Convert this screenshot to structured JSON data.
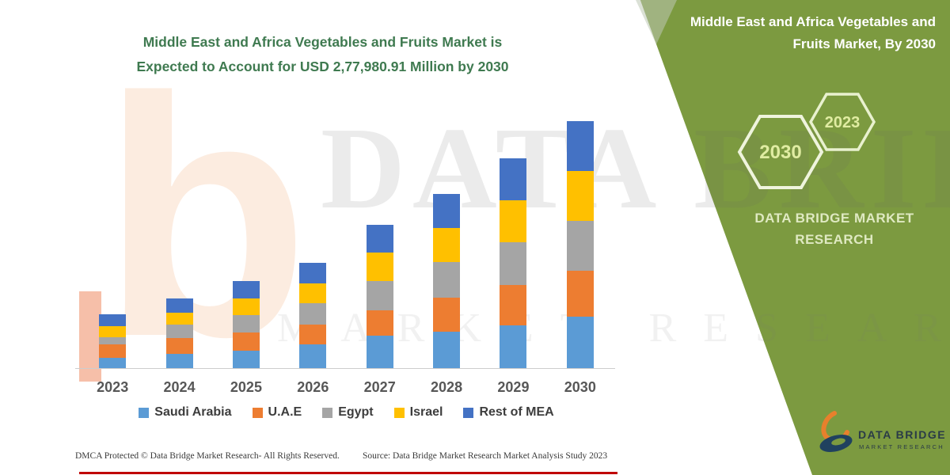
{
  "page_background": "#ffffff",
  "chart_title": {
    "line1": "Middle East and Africa Vegetables and Fruits Market is",
    "line2": "Expected to Account for USD 2,77,980.91 Million by 2030",
    "color": "#3f7a50"
  },
  "chart_data": {
    "type": "bar",
    "stacked": true,
    "title": "Middle East and Africa Vegetables and Fruits Market is Expected to Account for USD 2,77,980.91 Million by 2030",
    "unit": "USD Million",
    "categories": [
      "2023",
      "2024",
      "2025",
      "2026",
      "2027",
      "2028",
      "2029",
      "2030"
    ],
    "series": [
      {
        "name": "Saudi Arabia",
        "color": "#5B9BD5",
        "values": [
          11600,
          16000,
          19600,
          26700,
          36500,
          41000,
          48000,
          57900
        ]
      },
      {
        "name": "U.A.E",
        "color": "#ED7D31",
        "values": [
          15100,
          17800,
          20500,
          22300,
          28500,
          38000,
          46000,
          51700
        ]
      },
      {
        "name": "Egypt",
        "color": "#A5A5A5",
        "values": [
          8000,
          15100,
          19600,
          24100,
          33000,
          40000,
          48000,
          56100
        ]
      },
      {
        "name": "Israel",
        "color": "#FFC000",
        "values": [
          12500,
          13400,
          18700,
          22300,
          32100,
          38500,
          47000,
          56100
        ]
      },
      {
        "name": "Rest of MEA",
        "color": "#4472C4",
        "values": [
          13400,
          16000,
          19600,
          23200,
          31200,
          38500,
          47200,
          56180.91
        ]
      }
    ],
    "totals_estimated": [
      60600,
      78300,
      98000,
      118600,
      161300,
      196000,
      236200,
      277980.91
    ],
    "ylim": [
      0,
      280000
    ],
    "grid": false,
    "legend_position": "bottom",
    "xlabel": "",
    "ylabel": ""
  },
  "side_panel": {
    "background": "#7C9A40",
    "title_line1": "Middle East and Africa Vegetables and",
    "title_line2": "Fruits Market, By 2030",
    "hexagon_large_label": "2030",
    "hexagon_small_label": "2023",
    "brand_line1": "DATA BRIDGE MARKET",
    "brand_line2": "RESEARCH",
    "logo_text_line1": "DATA BRIDGE",
    "logo_text_line2": "MARKET RESEARCH"
  },
  "watermark": {
    "line1": "DATA BRIDGE",
    "line2": "MARKET RESEARCH",
    "logo_letter": "b"
  },
  "footer": {
    "left_text": "DMCA Protected © Data Bridge Market Research-  All Rights Reserved.",
    "right_text": "Source: Data Bridge Market Research  Market Analysis Study 2023",
    "rule_color": "#C00000"
  }
}
